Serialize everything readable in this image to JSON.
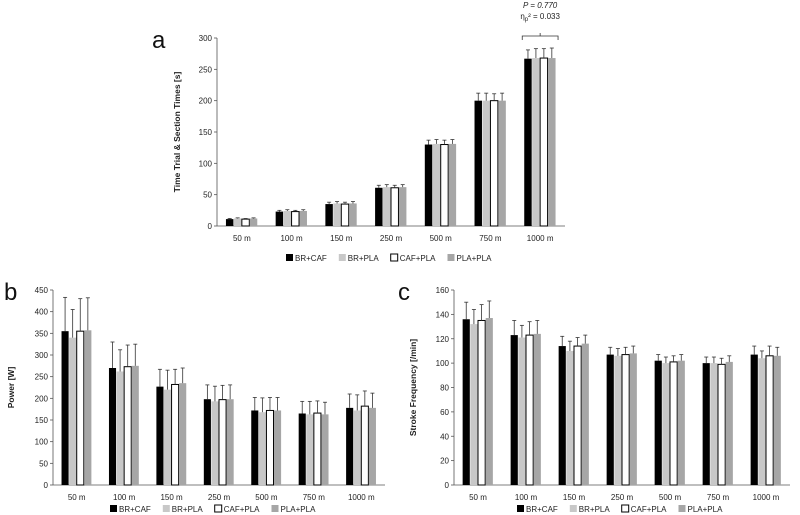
{
  "colors": {
    "br_caf": "#000000",
    "br_pla": "#c8c8c8",
    "caf_pla": "#ffffff",
    "pla_pla": "#a6a6a6",
    "stroke": "#000000",
    "axis": "#555555"
  },
  "chart_data": [
    {
      "id": "a",
      "panel_letter": "a",
      "type": "bar",
      "ylabel": "Time Trial & Section Times [s]",
      "ylim": [
        0,
        300
      ],
      "yticks": [
        "0",
        "50",
        "100",
        "150",
        "200",
        "250",
        "300"
      ],
      "categories": [
        "50 m",
        "100 m",
        "150 m",
        "250 m",
        "500 m",
        "750 m",
        "1000 m"
      ],
      "series": [
        {
          "name": "BR+CAF",
          "values": [
            11,
            23,
            35,
            61,
            130,
            200,
            267
          ],
          "errors": [
            1,
            2,
            3,
            4,
            7,
            12,
            14
          ]
        },
        {
          "name": "BR+PLA",
          "values": [
            12,
            24,
            36,
            62,
            131,
            200,
            268
          ],
          "errors": [
            1,
            2,
            3,
            4,
            7,
            12,
            15
          ]
        },
        {
          "name": "CAF+PLA",
          "values": [
            11,
            23,
            35,
            61,
            130,
            200,
            268
          ],
          "errors": [
            1,
            2,
            3,
            4,
            7,
            11,
            15
          ]
        },
        {
          "name": "PLA+PLA",
          "values": [
            12,
            24,
            36,
            62,
            131,
            200,
            268
          ],
          "errors": [
            1,
            2,
            3,
            4,
            7,
            12,
            16
          ]
        }
      ],
      "annotation": {
        "p_text": "P = 0.770",
        "eta_text": "η",
        "eta_sub": "p",
        "eta_rest": "² = 0.033"
      }
    },
    {
      "id": "b",
      "panel_letter": "b",
      "type": "bar",
      "ylabel": "Power [W]",
      "ylim": [
        0,
        450
      ],
      "yticks": [
        "0",
        "50",
        "100",
        "150",
        "200",
        "250",
        "300",
        "350",
        "400",
        "450"
      ],
      "categories": [
        "50 m",
        "100 m",
        "150 m",
        "250 m",
        "500 m",
        "750 m",
        "1000 m"
      ],
      "series": [
        {
          "name": "BR+CAF",
          "values": [
            355,
            270,
            227,
            198,
            172,
            165,
            178
          ],
          "errors": [
            78,
            60,
            40,
            33,
            30,
            28,
            32
          ]
        },
        {
          "name": "BR+PLA",
          "values": [
            340,
            262,
            220,
            193,
            168,
            163,
            172
          ],
          "errors": [
            65,
            50,
            45,
            35,
            33,
            30,
            36
          ]
        },
        {
          "name": "CAF+PLA",
          "values": [
            355,
            273,
            232,
            197,
            172,
            166,
            182
          ],
          "errors": [
            75,
            50,
            35,
            33,
            30,
            28,
            35
          ]
        },
        {
          "name": "PLA+PLA",
          "values": [
            357,
            275,
            235,
            198,
            172,
            163,
            178
          ],
          "errors": [
            75,
            50,
            35,
            33,
            30,
            28,
            34
          ]
        }
      ]
    },
    {
      "id": "c",
      "panel_letter": "c",
      "type": "bar",
      "ylabel": "Stroke Frequency [/min]",
      "ylim": [
        0,
        160
      ],
      "yticks": [
        "0",
        "20",
        "40",
        "60",
        "80",
        "100",
        "120",
        "140",
        "160"
      ],
      "categories": [
        "50 m",
        "100 m",
        "150 m",
        "250 m",
        "500 m",
        "750 m",
        "1000 m"
      ],
      "series": [
        {
          "name": "BR+CAF",
          "values": [
            136,
            123,
            114,
            107,
            102,
            100,
            107
          ],
          "errors": [
            14,
            12,
            8,
            6,
            5,
            5,
            7
          ]
        },
        {
          "name": "BR+PLA",
          "values": [
            132,
            121,
            110,
            106,
            100,
            100,
            104
          ],
          "errors": [
            12,
            10,
            8,
            6,
            5,
            5,
            6
          ]
        },
        {
          "name": "CAF+PLA",
          "values": [
            135,
            123,
            114,
            107,
            101,
            99,
            106
          ],
          "errors": [
            13,
            11,
            7,
            6,
            5,
            5,
            8
          ]
        },
        {
          "name": "PLA+PLA",
          "values": [
            137,
            124,
            116,
            108,
            102,
            101,
            106
          ],
          "errors": [
            14,
            11,
            7,
            6,
            5,
            5,
            7
          ]
        }
      ]
    }
  ]
}
